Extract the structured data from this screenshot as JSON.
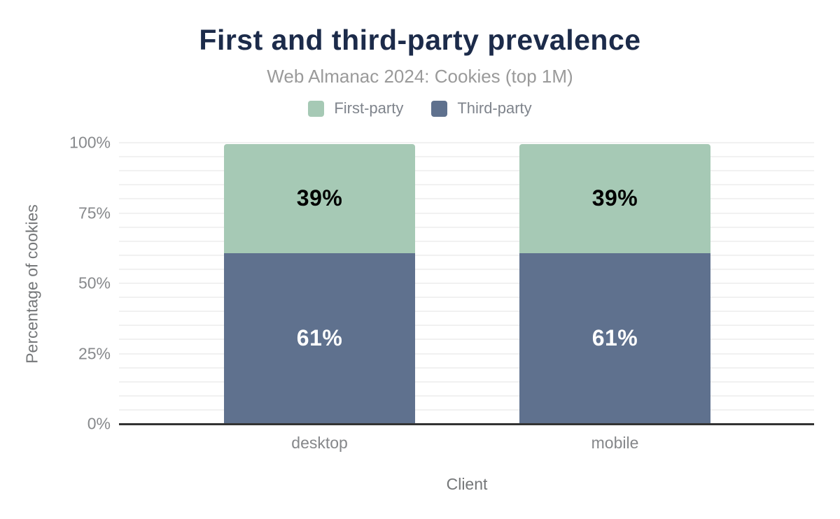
{
  "header": {
    "title": "First and third-party prevalence",
    "subtitle": "Web Almanac 2024: Cookies (top 1M)"
  },
  "legend": {
    "items": [
      {
        "label": "First-party",
        "color": "#a6c9b5"
      },
      {
        "label": "Third-party",
        "color": "#5f718e"
      }
    ]
  },
  "chart_data": {
    "type": "bar",
    "stacked": true,
    "title": "First and third-party prevalence",
    "subtitle": "Web Almanac 2024: Cookies (top 1M)",
    "categories": [
      "desktop",
      "mobile"
    ],
    "series": [
      {
        "name": "First-party",
        "color": "#a6c9b5",
        "values": [
          39,
          39
        ],
        "data_labels": [
          "39%",
          "39%"
        ],
        "data_label_color": "#000000",
        "stack_position": "top"
      },
      {
        "name": "Third-party",
        "color": "#5f718e",
        "values": [
          61,
          61
        ],
        "data_labels": [
          "61%",
          "61%"
        ],
        "data_label_color": "#ffffff",
        "stack_position": "bottom"
      }
    ],
    "xlabel": "Client",
    "ylabel": "Percentage of cookies",
    "ylim": [
      0,
      100
    ],
    "yticks": [
      {
        "label": "0%",
        "value": 0
      },
      {
        "label": "25%",
        "value": 25
      },
      {
        "label": "50%",
        "value": 50
      },
      {
        "label": "75%",
        "value": 75
      },
      {
        "label": "100%",
        "value": 100
      }
    ],
    "grid": {
      "horizontal": true,
      "interval_percent": 5,
      "color": "#f1f1f1"
    },
    "legend_position": "top",
    "colors": {
      "title": "#1c2b4a",
      "subtitle": "#9a9a9a",
      "axis_line": "#333333",
      "tick_label": "#87898c",
      "axis_title": "#757779",
      "legend_label": "#7f848c",
      "background": "#ffffff"
    }
  }
}
